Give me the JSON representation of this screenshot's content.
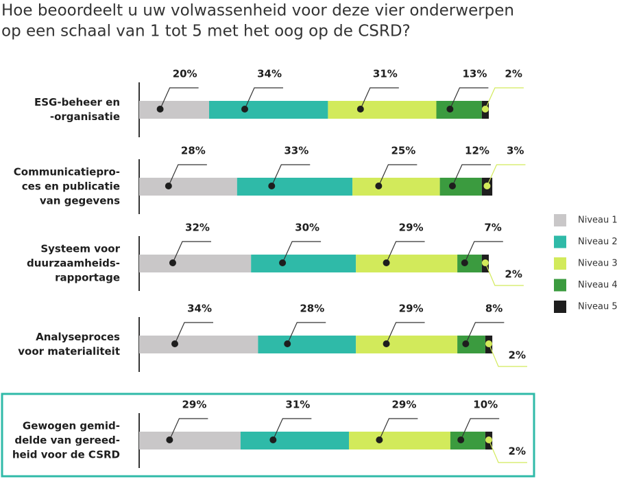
{
  "chart_data": {
    "type": "stacked-bar-horizontal",
    "title": [
      "Hoe beoordeelt u uw volwassenheid voor deze vier onderwerpen",
      "op een schaal van 1 tot 5 met het oog op de CSRD?"
    ],
    "categories": [
      [
        "ESG-beheer en",
        "-organisatie"
      ],
      [
        "Communicatiepro-",
        "ces en publicatie",
        "van gegevens"
      ],
      [
        "Systeem voor",
        "duurzaamheids-",
        "rapportage"
      ],
      [
        "Analyseproces",
        "voor materialiteit"
      ],
      [
        "Gewogen gemid-",
        "delde van gereed-",
        "heid voor de CSRD"
      ]
    ],
    "series": [
      {
        "name": "Niveau 1",
        "color": "#c9c7c8",
        "values": [
          20,
          28,
          32,
          34,
          29
        ],
        "value_labels": [
          "20%",
          "28%",
          "32%",
          "34%",
          "29%"
        ]
      },
      {
        "name": "Niveau 2",
        "color": "#2fbaa8",
        "values": [
          34,
          33,
          30,
          28,
          31
        ],
        "value_labels": [
          "34%",
          "33%",
          "30%",
          "28%",
          "31%"
        ]
      },
      {
        "name": "Niveau 3",
        "color": "#d2ea5b",
        "values": [
          31,
          25,
          29,
          29,
          29
        ],
        "value_labels": [
          "31%",
          "25%",
          "29%",
          "29%",
          "29%"
        ]
      },
      {
        "name": "Niveau 4",
        "color": "#3b9b3f",
        "values": [
          13,
          12,
          7,
          8,
          10
        ],
        "value_labels": [
          "13%",
          "12%",
          "7%",
          "8%",
          "10%"
        ]
      },
      {
        "name": "Niveau 5",
        "color": "#1e1e1e",
        "values": [
          2,
          3,
          2,
          2,
          2
        ],
        "value_labels": [
          "2%",
          "3%",
          "2%",
          "2%",
          "2%"
        ]
      }
    ]
  }
}
